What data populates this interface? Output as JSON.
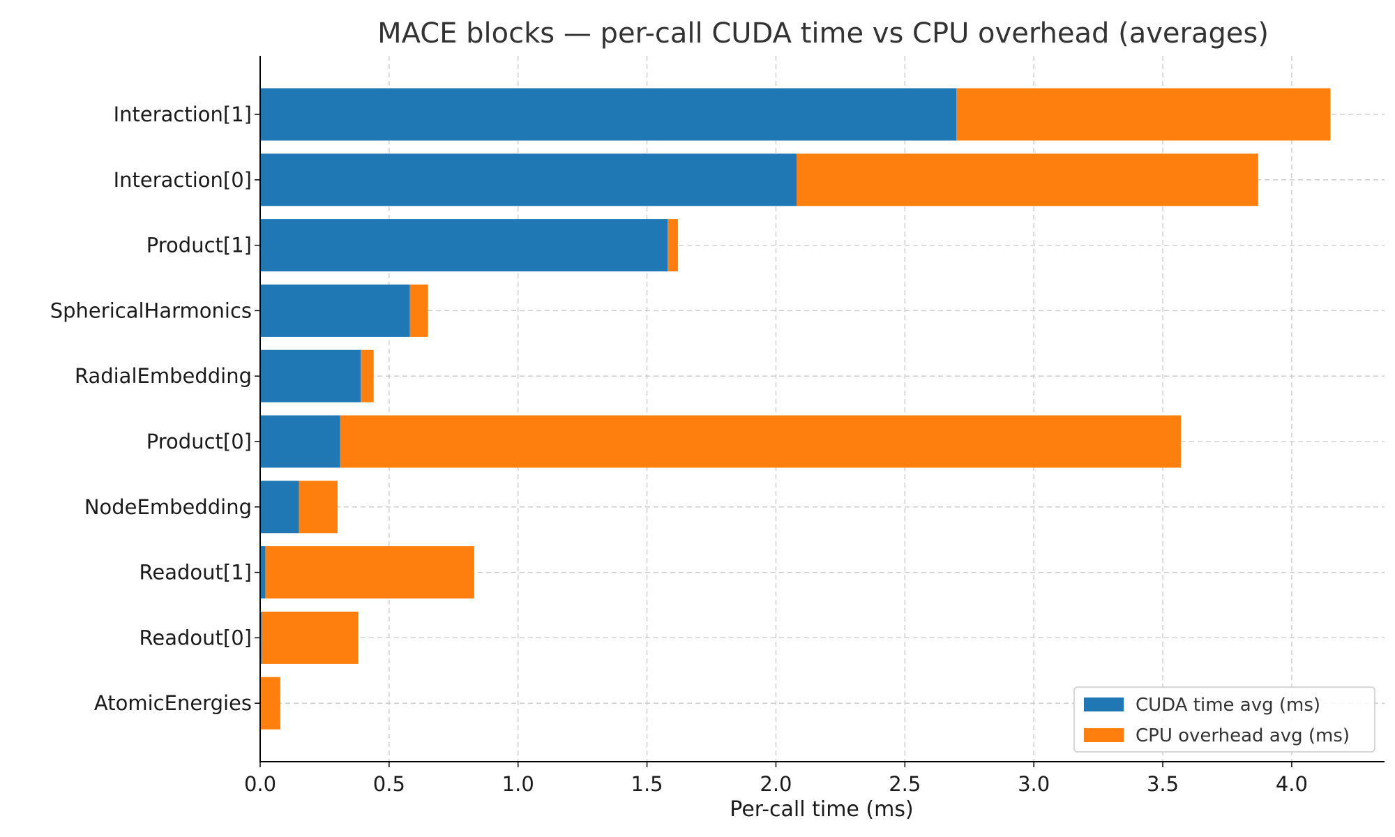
{
  "chart_data": {
    "type": "bar",
    "orientation": "horizontal",
    "stacked": true,
    "title": "MACE blocks — per-call CUDA time vs CPU overhead (averages)",
    "xlabel": "Per-call time (ms)",
    "ylabel": "",
    "xlim": [
      0,
      4.36
    ],
    "xticks": [
      "0.0",
      "0.5",
      "1.0",
      "1.5",
      "2.0",
      "2.5",
      "3.0",
      "3.5",
      "4.0"
    ],
    "grid": true,
    "legend_position": "lower-right",
    "categories": [
      "Interaction[1]",
      "Interaction[0]",
      "Product[1]",
      "SphericalHarmonics",
      "RadialEmbedding",
      "Product[0]",
      "NodeEmbedding",
      "Readout[1]",
      "Readout[0]",
      "AtomicEnergies"
    ],
    "series": [
      {
        "name": "CUDA time avg (ms)",
        "color": "#1f77b4",
        "values": [
          2.7,
          2.08,
          1.58,
          0.58,
          0.39,
          0.31,
          0.15,
          0.02,
          0.005,
          0.003
        ]
      },
      {
        "name": "CPU overhead avg (ms)",
        "color": "#ff7f0e",
        "values": [
          1.45,
          1.79,
          0.04,
          0.07,
          0.05,
          3.26,
          0.15,
          0.81,
          0.375,
          0.075
        ]
      }
    ]
  }
}
